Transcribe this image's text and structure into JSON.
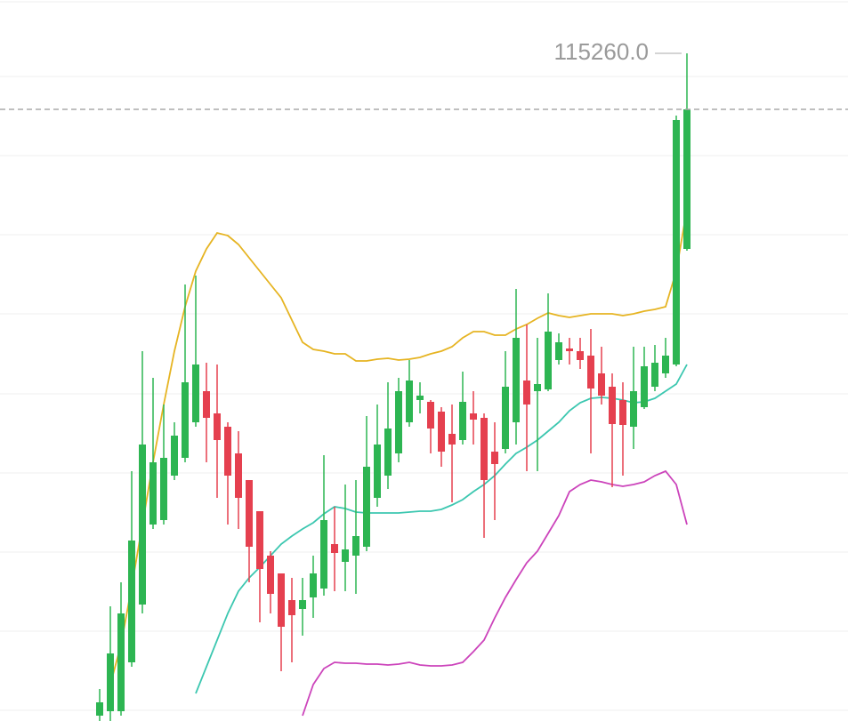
{
  "chart_data": {
    "type": "candlestick",
    "open": [
      107810,
      107860,
      107860,
      108410,
      109060,
      109960,
      110010,
      110510,
      110710,
      111110,
      111460,
      111210,
      111060,
      110760,
      110460,
      110110,
      109610,
      109410,
      109110,
      109010,
      109140,
      109240,
      109740,
      109540,
      109610,
      109710,
      110260,
      110510,
      110760,
      111110,
      111360,
      111340,
      111230,
      110980,
      110910,
      111210,
      111160,
      110780,
      110810,
      111110,
      111580,
      111460,
      111480,
      111810,
      111940,
      111910,
      111860,
      111660,
      111510,
      111360,
      111060,
      111280,
      111510,
      111660,
      111760,
      113060
    ],
    "high": [
      108110,
      109040,
      109310,
      110560,
      111910,
      111610,
      111310,
      111110,
      112660,
      112760,
      111780,
      111760,
      111110,
      111010,
      110460,
      110110,
      109660,
      109410,
      109360,
      109360,
      109610,
      110740,
      110160,
      110410,
      110460,
      111180,
      111310,
      111560,
      111610,
      111810,
      111560,
      111360,
      111280,
      111310,
      111680,
      111460,
      111210,
      111110,
      111910,
      112610,
      112210,
      112060,
      112560,
      112110,
      112060,
      112060,
      112160,
      111960,
      111660,
      111560,
      111960,
      111960,
      111980,
      112060,
      114560,
      115260
    ],
    "low": [
      107750,
      107750,
      107810,
      108360,
      108960,
      109910,
      109960,
      110460,
      110660,
      111060,
      110660,
      110260,
      109960,
      109910,
      109310,
      108860,
      108960,
      108310,
      108410,
      108710,
      108910,
      109160,
      109210,
      109210,
      109180,
      109660,
      110160,
      110360,
      110660,
      111060,
      111210,
      110760,
      110610,
      110210,
      110860,
      110860,
      109810,
      110010,
      110760,
      110860,
      110560,
      110560,
      111460,
      111760,
      111760,
      111710,
      110760,
      111310,
      110380,
      110510,
      110810,
      111260,
      111460,
      111610,
      111740,
      113040
    ],
    "close": [
      107960,
      108510,
      108960,
      109780,
      110860,
      110660,
      110710,
      110960,
      111560,
      111760,
      111160,
      110910,
      110510,
      110260,
      109710,
      109460,
      109180,
      108810,
      108940,
      109110,
      109410,
      110010,
      109640,
      109680,
      109830,
      110610,
      110860,
      111040,
      111460,
      111580,
      111410,
      111040,
      110780,
      110860,
      111340,
      111140,
      110460,
      110640,
      111510,
      112060,
      111310,
      111540,
      112130,
      112010,
      111910,
      111810,
      111490,
      111410,
      111090,
      111080,
      111460,
      111740,
      111780,
      111860,
      114510,
      114630
    ],
    "up_color": "#2db552",
    "down_color": "#e5404f",
    "ylim": [
      107750,
      115860
    ],
    "last_price_line": true,
    "max_label": "115260.0",
    "lines": [
      {
        "color": "#e6b422",
        "values": [
          null,
          108160,
          108610,
          109260,
          109960,
          110660,
          111310,
          111910,
          112410,
          112810,
          113060,
          113240,
          113210,
          113110,
          112960,
          112810,
          112660,
          112510,
          112260,
          112010,
          111930,
          111910,
          111880,
          111880,
          111800,
          111800,
          111820,
          111830,
          111810,
          111820,
          111840,
          111880,
          111910,
          111960,
          112060,
          112130,
          112130,
          112090,
          112090,
          112160,
          112210,
          112280,
          112340,
          112310,
          112290,
          112310,
          112330,
          112330,
          112330,
          112310,
          112330,
          112360,
          112380,
          112410,
          112810,
          113510
        ]
      },
      {
        "color": "#3cc7b0",
        "values": [
          null,
          null,
          null,
          null,
          null,
          null,
          null,
          null,
          null,
          108060,
          108360,
          108660,
          108960,
          109210,
          109360,
          109480,
          109610,
          109740,
          109830,
          109910,
          109980,
          110080,
          110160,
          110140,
          110100,
          110090,
          110090,
          110090,
          110090,
          110100,
          110110,
          110110,
          110130,
          110180,
          110240,
          110330,
          110410,
          110510,
          110640,
          110760,
          110830,
          110910,
          111010,
          111110,
          111240,
          111330,
          111380,
          111390,
          111380,
          111360,
          111330,
          111340,
          111380,
          111460,
          111540,
          111760
        ]
      },
      {
        "color": "#cc44bb",
        "values": [
          null,
          null,
          null,
          null,
          null,
          null,
          null,
          null,
          null,
          null,
          null,
          null,
          null,
          null,
          null,
          null,
          null,
          null,
          null,
          107810,
          108160,
          108340,
          108410,
          108400,
          108400,
          108390,
          108390,
          108380,
          108390,
          108410,
          108380,
          108370,
          108370,
          108380,
          108410,
          108530,
          108660,
          108910,
          109140,
          109340,
          109530,
          109660,
          109860,
          110060,
          110330,
          110410,
          110460,
          110440,
          110410,
          110390,
          110410,
          110440,
          110510,
          110560,
          110410,
          109960
        ]
      }
    ]
  }
}
